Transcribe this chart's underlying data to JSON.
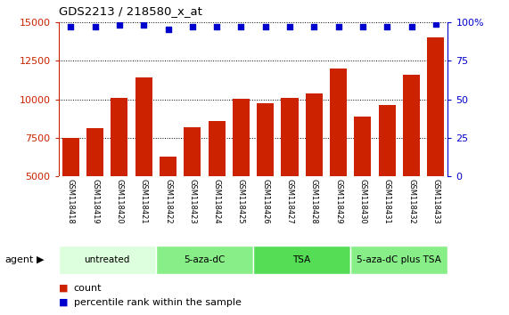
{
  "title": "GDS2213 / 218580_x_at",
  "samples": [
    "GSM118418",
    "GSM118419",
    "GSM118420",
    "GSM118421",
    "GSM118422",
    "GSM118423",
    "GSM118424",
    "GSM118425",
    "GSM118426",
    "GSM118427",
    "GSM118428",
    "GSM118429",
    "GSM118430",
    "GSM118431",
    "GSM118432",
    "GSM118433"
  ],
  "counts": [
    7500,
    8100,
    10100,
    11400,
    6300,
    8200,
    8600,
    10050,
    9750,
    10100,
    10400,
    12000,
    8900,
    9600,
    11600,
    14000
  ],
  "percentile_ranks": [
    97,
    97,
    98,
    98,
    95,
    97,
    97,
    97,
    97,
    97,
    97,
    97,
    97,
    97,
    97,
    99
  ],
  "bar_color": "#CC2200",
  "dot_color": "#0000CC",
  "ylim_left": [
    5000,
    15000
  ],
  "ylim_right": [
    0,
    100
  ],
  "yticks_left": [
    5000,
    7500,
    10000,
    12500,
    15000
  ],
  "yticks_right": [
    0,
    25,
    50,
    75,
    100
  ],
  "groups": [
    {
      "label": "untreated",
      "start": 0,
      "end": 4,
      "color": "#ddffdd"
    },
    {
      "label": "5-aza-dC",
      "start": 4,
      "end": 8,
      "color": "#88ee88"
    },
    {
      "label": "TSA",
      "start": 8,
      "end": 12,
      "color": "#55dd55"
    },
    {
      "label": "5-aza-dC plus TSA",
      "start": 12,
      "end": 16,
      "color": "#88ee88"
    }
  ],
  "agent_label": "agent",
  "legend_count_label": "count",
  "legend_percentile_label": "percentile rank within the sample",
  "left_label_color": "#CC2200",
  "right_label_color": "#0000CC",
  "grid_color": "#000000",
  "background_plot": "#ffffff",
  "tick_area_color": "#c8c8c8"
}
